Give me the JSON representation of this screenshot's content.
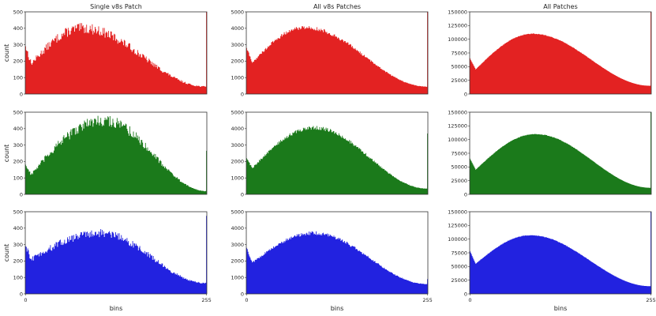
{
  "chart_data": [
    {
      "type": "bar",
      "title": "Single v8s Patch",
      "ylabel": "count",
      "xlabel": "",
      "xlim": [
        0,
        255
      ],
      "ylim": [
        0,
        500
      ],
      "yticks": [
        0,
        100,
        200,
        300,
        400,
        500
      ],
      "xticks": [],
      "color": "#e32222",
      "profile": {
        "start": 290,
        "trough": 185,
        "peak": 400,
        "peak_bin": 80,
        "end": 45,
        "spike": 500
      },
      "noise": 0.08
    },
    {
      "type": "bar",
      "title": "All v8s Patches",
      "ylabel": "",
      "xlabel": "",
      "xlim": [
        0,
        255
      ],
      "ylim": [
        0,
        5000
      ],
      "yticks": [
        0,
        1000,
        2000,
        3000,
        4000,
        5000
      ],
      "xticks": [],
      "color": "#e32222",
      "profile": {
        "start": 2800,
        "trough": 1900,
        "peak": 4050,
        "peak_bin": 82,
        "end": 450,
        "spike": 5000
      },
      "noise": 0.03
    },
    {
      "type": "bar",
      "title": "All Patches",
      "ylabel": "",
      "xlabel": "",
      "xlim": [
        0,
        255
      ],
      "ylim": [
        0,
        150000
      ],
      "yticks": [
        0,
        25000,
        50000,
        75000,
        100000,
        125000,
        150000
      ],
      "xticks": [],
      "color": "#e32222",
      "profile": {
        "start": 65000,
        "trough": 45000,
        "peak": 110000,
        "peak_bin": 88,
        "end": 15000,
        "spike": 150000
      },
      "noise": 0.005
    },
    {
      "type": "bar",
      "title": "",
      "ylabel": "count",
      "xlabel": "",
      "xlim": [
        0,
        255
      ],
      "ylim": [
        0,
        500
      ],
      "yticks": [
        0,
        100,
        200,
        300,
        400,
        500
      ],
      "xticks": [],
      "color": "#1b7a1b",
      "profile": {
        "start": 180,
        "trough": 120,
        "peak": 450,
        "peak_bin": 110,
        "end": 20,
        "spike": 265
      },
      "noise": 0.08
    },
    {
      "type": "bar",
      "title": "",
      "ylabel": "",
      "xlabel": "",
      "xlim": [
        0,
        255
      ],
      "ylim": [
        0,
        5000
      ],
      "yticks": [
        0,
        1000,
        2000,
        3000,
        4000,
        5000
      ],
      "xticks": [],
      "color": "#1b7a1b",
      "profile": {
        "start": 2200,
        "trough": 1600,
        "peak": 4050,
        "peak_bin": 95,
        "end": 350,
        "spike": 3700
      },
      "noise": 0.03
    },
    {
      "type": "bar",
      "title": "",
      "ylabel": "",
      "xlabel": "",
      "xlim": [
        0,
        255
      ],
      "ylim": [
        0,
        150000
      ],
      "yticks": [
        0,
        25000,
        50000,
        75000,
        100000,
        125000,
        150000
      ],
      "xticks": [],
      "color": "#1b7a1b",
      "profile": {
        "start": 65000,
        "trough": 45000,
        "peak": 110000,
        "peak_bin": 92,
        "end": 12000,
        "spike": 150000
      },
      "noise": 0.005
    },
    {
      "type": "bar",
      "title": "",
      "ylabel": "count",
      "xlabel": "bins",
      "xlim": [
        0,
        255
      ],
      "ylim": [
        0,
        500
      ],
      "yticks": [
        0,
        100,
        200,
        300,
        400,
        500
      ],
      "xticks": [
        0,
        255
      ],
      "color": "#2222e0",
      "profile": {
        "start": 290,
        "trough": 210,
        "peak": 370,
        "peak_bin": 105,
        "end": 65,
        "spike": 475
      },
      "noise": 0.07
    },
    {
      "type": "bar",
      "title": "",
      "ylabel": "",
      "xlabel": "bins",
      "xlim": [
        0,
        255
      ],
      "ylim": [
        0,
        5000
      ],
      "yticks": [
        0,
        1000,
        2000,
        3000,
        4000,
        5000
      ],
      "xticks": [
        0,
        255
      ],
      "color": "#2222e0",
      "profile": {
        "start": 2800,
        "trough": 1900,
        "peak": 3700,
        "peak_bin": 95,
        "end": 600,
        "spike": 900
      },
      "noise": 0.03
    },
    {
      "type": "bar",
      "title": "",
      "ylabel": "",
      "xlabel": "bins",
      "xlim": [
        0,
        255
      ],
      "ylim": [
        0,
        150000
      ],
      "yticks": [
        0,
        25000,
        50000,
        75000,
        100000,
        125000,
        150000
      ],
      "xticks": [
        0,
        255
      ],
      "color": "#2222e0",
      "profile": {
        "start": 78000,
        "trough": 55000,
        "peak": 107000,
        "peak_bin": 85,
        "end": 14000,
        "spike": 150000
      },
      "noise": 0.005
    }
  ]
}
